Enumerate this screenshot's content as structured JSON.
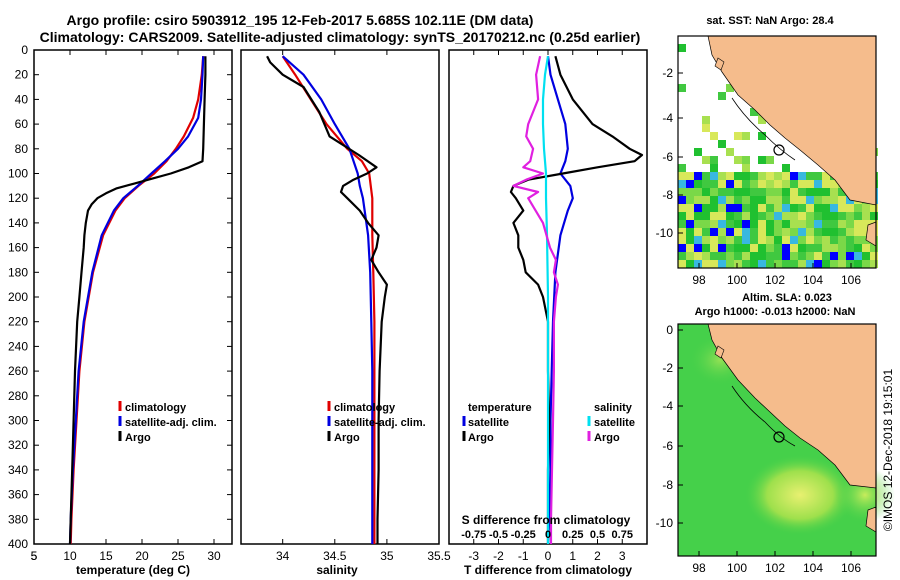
{
  "title_line1": "Argo profile: csiro 5903912_195 12-Feb-2017 5.685S 102.11E (DM data)",
  "title_line2": "Climatology: CARS2009. Satellite-adjusted climatology: synTS_20170212.nc (0.25d earlier)",
  "watermark": "©IMOS 12-Dec-2018 19:15:01",
  "colors": {
    "climatology": "#e00000",
    "satellite": "#0000e0",
    "argo": "#000000",
    "magenta": "#e020e0",
    "cyan": "#00e0f0",
    "land": "#f5bc8c"
  },
  "chart_data": [
    {
      "type": "line",
      "id": "temperature",
      "xlabel": "temperature (deg C)",
      "ylabel": "",
      "xlim": [
        5,
        32.5
      ],
      "ylim": [
        0,
        400
      ],
      "xticks": [
        "5",
        "10",
        "15",
        "20",
        "25",
        "30"
      ],
      "yticks": [
        "0",
        "20",
        "40",
        "60",
        "80",
        "100",
        "120",
        "140",
        "160",
        "180",
        "200",
        "220",
        "240",
        "260",
        "280",
        "300",
        "320",
        "340",
        "360",
        "380",
        "400"
      ],
      "legend": [
        "climatology",
        "satellite-adj. clim.",
        "Argo"
      ],
      "series": [
        {
          "name": "climatology",
          "depth": [
            5,
            20,
            40,
            55,
            70,
            80,
            90,
            100,
            110,
            120,
            130,
            150,
            180,
            220,
            260,
            300,
            340,
            380,
            400
          ],
          "values": [
            28.5,
            28.3,
            27.8,
            27.1,
            25.8,
            24.7,
            23.4,
            21.7,
            19.5,
            17.6,
            16.3,
            14.6,
            13.2,
            12.0,
            11.3,
            10.9,
            10.5,
            10.2,
            10.1
          ]
        },
        {
          "name": "satellite-adj. clim.",
          "depth": [
            5,
            20,
            40,
            55,
            70,
            80,
            90,
            100,
            110,
            120,
            130,
            150,
            180,
            220,
            260,
            300,
            340,
            380,
            400
          ],
          "values": [
            28.5,
            28.4,
            28.2,
            27.8,
            26.4,
            25.0,
            23.2,
            21.3,
            19.4,
            17.4,
            16.1,
            14.4,
            13.1,
            11.9,
            11.2,
            10.8,
            10.4,
            10.1,
            10.0
          ]
        },
        {
          "name": "Argo",
          "depth": [
            5,
            20,
            40,
            60,
            80,
            90,
            95,
            100,
            104,
            108,
            112,
            116,
            120,
            125,
            130,
            140,
            150,
            160,
            180,
            200,
            220,
            260,
            300,
            340,
            380,
            400
          ],
          "values": [
            28.8,
            28.8,
            28.7,
            28.6,
            28.5,
            28.4,
            26.5,
            24.0,
            21.5,
            19.0,
            16.5,
            15.0,
            13.8,
            13.0,
            12.5,
            12.2,
            12.0,
            11.9,
            11.6,
            11.3,
            11.0,
            10.7,
            10.5,
            10.3,
            10.1,
            10.0
          ]
        }
      ]
    },
    {
      "type": "line",
      "id": "salinity",
      "xlabel": "salinity",
      "xlim": [
        33.6,
        35.5
      ],
      "ylim": [
        0,
        400
      ],
      "xticks": [
        "34",
        "34.5",
        "35",
        "35.5"
      ],
      "legend": [
        "climatology",
        "satellite-adj. clim.",
        "Argo"
      ],
      "series": [
        {
          "name": "climatology",
          "depth": [
            5,
            20,
            40,
            60,
            80,
            90,
            100,
            120,
            150,
            180,
            220,
            260,
            300,
            340,
            380,
            400
          ],
          "values": [
            34.0,
            34.12,
            34.27,
            34.42,
            34.62,
            34.76,
            34.83,
            34.86,
            34.86,
            34.87,
            34.88,
            34.88,
            34.88,
            34.88,
            34.88,
            34.88
          ]
        },
        {
          "name": "satellite-adj. clim.",
          "depth": [
            5,
            20,
            40,
            60,
            80,
            100,
            110,
            120,
            150,
            180,
            220,
            260,
            300,
            340,
            380,
            400
          ],
          "values": [
            34.0,
            34.2,
            34.37,
            34.5,
            34.64,
            34.72,
            34.74,
            34.77,
            34.82,
            34.84,
            34.85,
            34.86,
            34.86,
            34.86,
            34.86,
            34.86
          ]
        },
        {
          "name": "Argo",
          "depth": [
            5,
            10,
            20,
            30,
            50,
            70,
            85,
            95,
            100,
            105,
            110,
            115,
            120,
            130,
            140,
            150,
            160,
            170,
            180,
            190,
            200,
            220,
            260,
            300,
            340,
            380,
            400
          ],
          "values": [
            33.85,
            33.88,
            34.0,
            34.2,
            34.35,
            34.45,
            34.73,
            34.9,
            34.81,
            34.68,
            34.58,
            34.56,
            34.62,
            34.74,
            34.82,
            34.92,
            34.9,
            34.85,
            34.92,
            35.0,
            34.98,
            34.95,
            34.93,
            34.92,
            34.92,
            34.91,
            34.91
          ]
        }
      ]
    },
    {
      "type": "line",
      "id": "difference",
      "xlabel": "T difference from climatology",
      "xlabel_top": "S difference from climatology",
      "xlim": [
        -4,
        4
      ],
      "ylim": [
        0,
        400
      ],
      "xticks": [
        "-3",
        "-2",
        "-1",
        "0",
        "1",
        "2",
        "3"
      ],
      "xticks_top": [
        "-0.75",
        "-0.5",
        "-0.25",
        "0",
        "0.25",
        "0.5",
        "0.75"
      ],
      "legend_left": [
        "temperature",
        "satellite",
        "Argo"
      ],
      "legend_right": [
        "salinity",
        "satellite",
        "Argo"
      ],
      "series": [
        {
          "name": "temperature satellite",
          "depth": [
            5,
            20,
            40,
            60,
            80,
            90,
            100,
            110,
            120,
            130,
            150,
            180,
            220,
            260,
            300,
            340,
            380,
            400
          ],
          "values": [
            0.0,
            0.1,
            0.4,
            0.7,
            0.8,
            0.7,
            0.5,
            0.9,
            1.0,
            0.8,
            0.5,
            0.3,
            0.2,
            0.15,
            0.1,
            0.1,
            0.05,
            0.0
          ]
        },
        {
          "name": "temperature Argo",
          "depth": [
            5,
            20,
            40,
            60,
            70,
            80,
            85,
            90,
            95,
            100,
            105,
            110,
            115,
            120,
            130,
            140,
            150,
            160,
            170,
            180,
            190,
            200,
            220,
            260,
            300,
            340,
            380,
            400
          ],
          "values": [
            0.3,
            0.5,
            1.0,
            1.8,
            2.6,
            3.3,
            3.8,
            3.5,
            2.0,
            0.6,
            -0.8,
            -1.4,
            -1.5,
            -1.3,
            -1.0,
            -1.4,
            -1.2,
            -1.2,
            -1.0,
            -0.9,
            -0.4,
            -0.2,
            0.0,
            0.0,
            0.05,
            0.0,
            0.0,
            0.0
          ]
        },
        {
          "name": "salinity satellite",
          "depth": [
            5,
            20,
            40,
            60,
            80,
            100,
            120,
            150,
            200,
            260,
            300,
            340,
            400
          ],
          "values": [
            0.0,
            -0.03,
            -0.05,
            -0.05,
            -0.04,
            -0.02,
            -0.02,
            -0.01,
            0.0,
            0.0,
            0.0,
            0.0,
            0.0
          ]
        },
        {
          "name": "salinity Argo",
          "depth": [
            5,
            20,
            40,
            60,
            70,
            80,
            90,
            95,
            100,
            105,
            110,
            115,
            120,
            140,
            160,
            170,
            180,
            190,
            200,
            220,
            260,
            300,
            340,
            380,
            400
          ],
          "values": [
            -0.08,
            -0.12,
            -0.1,
            -0.2,
            -0.22,
            -0.15,
            -0.18,
            -0.25,
            -0.05,
            -0.22,
            -0.35,
            -0.1,
            -0.2,
            -0.05,
            0.02,
            0.08,
            0.06,
            0.1,
            0.08,
            0.06,
            0.06,
            0.05,
            0.04,
            0.03,
            0.03
          ]
        }
      ]
    }
  ],
  "map_sst": {
    "title": "sat. SST: NaN Argo: 28.4",
    "xticks": [
      "98",
      "100",
      "102",
      "104",
      "106"
    ],
    "yticks": [
      "-2",
      "-4",
      "-6",
      "-8",
      "-10"
    ]
  },
  "map_sla": {
    "title_line1": "Altim. SLA: 0.023",
    "title_line2": "Argo h1000: -0.013 h2000: NaN",
    "xticks": [
      "98",
      "100",
      "102",
      "104",
      "106"
    ],
    "yticks": [
      "0",
      "-2",
      "-4",
      "-6",
      "-8",
      "-10"
    ]
  }
}
